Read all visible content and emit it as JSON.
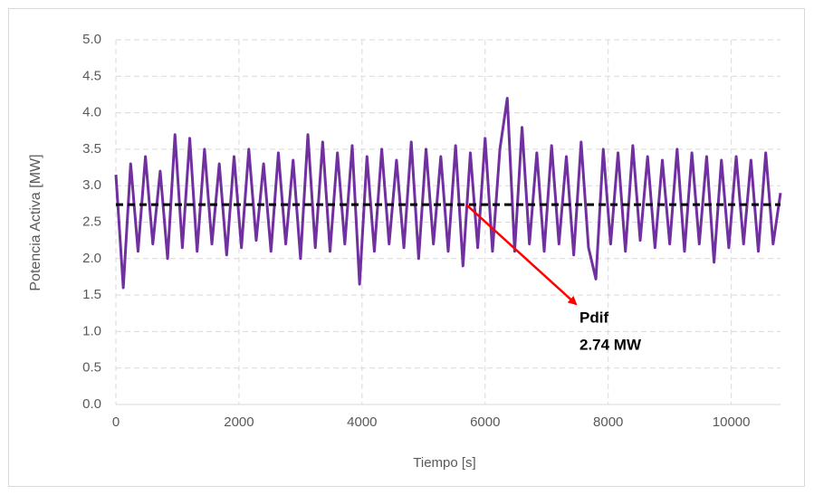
{
  "chart_data": {
    "type": "line",
    "x_label": "Tiempo [s]",
    "y_label": "Potencia Activa [MW]",
    "xlim": [
      0,
      10800
    ],
    "ylim": [
      0,
      5
    ],
    "xticks": [
      0,
      2000,
      4000,
      6000,
      8000,
      10000
    ],
    "yticks": [
      {
        "value": 0,
        "label": "0.0"
      },
      0.5,
      {
        "value": 1,
        "label": "1.0"
      },
      1.5,
      {
        "value": 2,
        "label": "2.0"
      },
      2.5,
      {
        "value": 3,
        "label": "3.0"
      },
      3.5,
      {
        "value": 4,
        "label": "4.0"
      },
      4.5,
      {
        "value": 5,
        "label": "5.0"
      }
    ],
    "grid": true,
    "x": [
      0,
      120,
      240,
      360,
      480,
      600,
      720,
      840,
      960,
      1080,
      1200,
      1320,
      1440,
      1560,
      1680,
      1800,
      1920,
      2040,
      2160,
      2280,
      2400,
      2520,
      2640,
      2760,
      2880,
      3000,
      3120,
      3240,
      3360,
      3480,
      3600,
      3720,
      3840,
      3960,
      4080,
      4200,
      4320,
      4440,
      4560,
      4680,
      4800,
      4920,
      5040,
      5160,
      5280,
      5400,
      5520,
      5640,
      5760,
      5880,
      6000,
      6120,
      6240,
      6360,
      6480,
      6600,
      6720,
      6840,
      6960,
      7080,
      7200,
      7320,
      7440,
      7560,
      7680,
      7800,
      7920,
      8040,
      8160,
      8280,
      8400,
      8520,
      8640,
      8760,
      8880,
      9000,
      9120,
      9240,
      9360,
      9480,
      9600,
      9720,
      9840,
      9960,
      10080,
      10200,
      10320,
      10440,
      10560,
      10680,
      10800
    ],
    "series": [
      {
        "color": "#7030a0",
        "values": [
          3.15,
          1.6,
          3.3,
          2.1,
          3.4,
          2.2,
          3.2,
          2.0,
          3.7,
          2.15,
          3.65,
          2.1,
          3.5,
          2.2,
          3.3,
          2.05,
          3.4,
          2.15,
          3.5,
          2.25,
          3.3,
          2.1,
          3.45,
          2.2,
          3.35,
          2.0,
          3.7,
          2.15,
          3.6,
          2.1,
          3.45,
          2.2,
          3.55,
          1.65,
          3.4,
          2.1,
          3.5,
          2.2,
          3.35,
          2.15,
          3.6,
          2.0,
          3.5,
          2.2,
          3.4,
          2.1,
          3.55,
          1.9,
          3.45,
          2.15,
          3.65,
          2.1,
          3.5,
          4.2,
          2.1,
          3.8,
          2.2,
          3.45,
          2.1,
          3.55,
          2.2,
          3.4,
          2.05,
          3.6,
          2.15,
          1.72,
          3.5,
          2.2,
          3.45,
          2.1,
          3.55,
          2.25,
          3.4,
          2.15,
          3.35,
          2.2,
          3.5,
          2.1,
          3.45,
          2.2,
          3.4,
          1.95,
          3.35,
          2.15,
          3.4,
          2.2,
          3.35,
          2.1,
          3.45,
          2.2,
          2.9
        ]
      }
    ],
    "reference_line": {
      "value": 2.74,
      "color": "#000000"
    },
    "annotations": [
      "Pdif",
      "2.74 MW"
    ],
    "arrow_color": "#ff0000"
  }
}
